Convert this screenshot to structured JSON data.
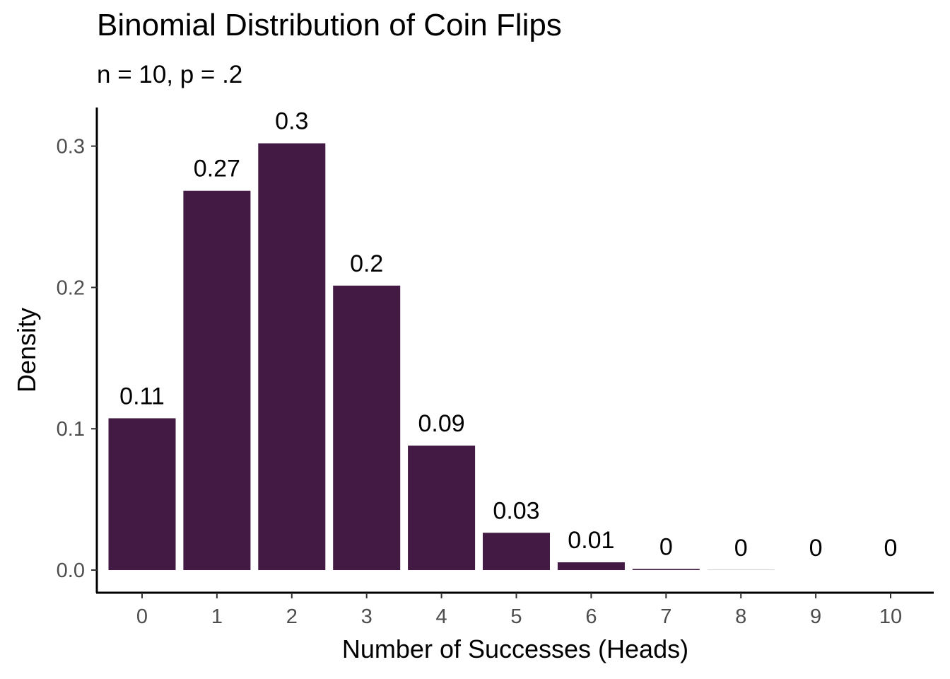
{
  "chart_data": {
    "type": "bar",
    "title": "Binomial Distribution of Coin Flips",
    "subtitle": "n = 10, p = .2",
    "xlabel": "Number of Successes (Heads)",
    "ylabel": "Density",
    "categories": [
      "0",
      "1",
      "2",
      "3",
      "4",
      "5",
      "6",
      "7",
      "8",
      "9",
      "10"
    ],
    "values": [
      0.1074,
      0.2684,
      0.302,
      0.2013,
      0.0881,
      0.0264,
      0.0055,
      0.0008,
      0.0001,
      0.0,
      0.0
    ],
    "data_labels": [
      "0.11",
      "0.27",
      "0.3",
      "0.2",
      "0.09",
      "0.03",
      "0.01",
      "0",
      "0",
      "0",
      "0"
    ],
    "ylim": [
      0,
      0.3
    ],
    "yticks": [
      0.0,
      0.1,
      0.2,
      0.3
    ],
    "ytick_labels": [
      "0.0",
      "0.1",
      "0.2",
      "0.3"
    ],
    "bar_color": "#431a43",
    "grid": false,
    "legend": "none"
  }
}
